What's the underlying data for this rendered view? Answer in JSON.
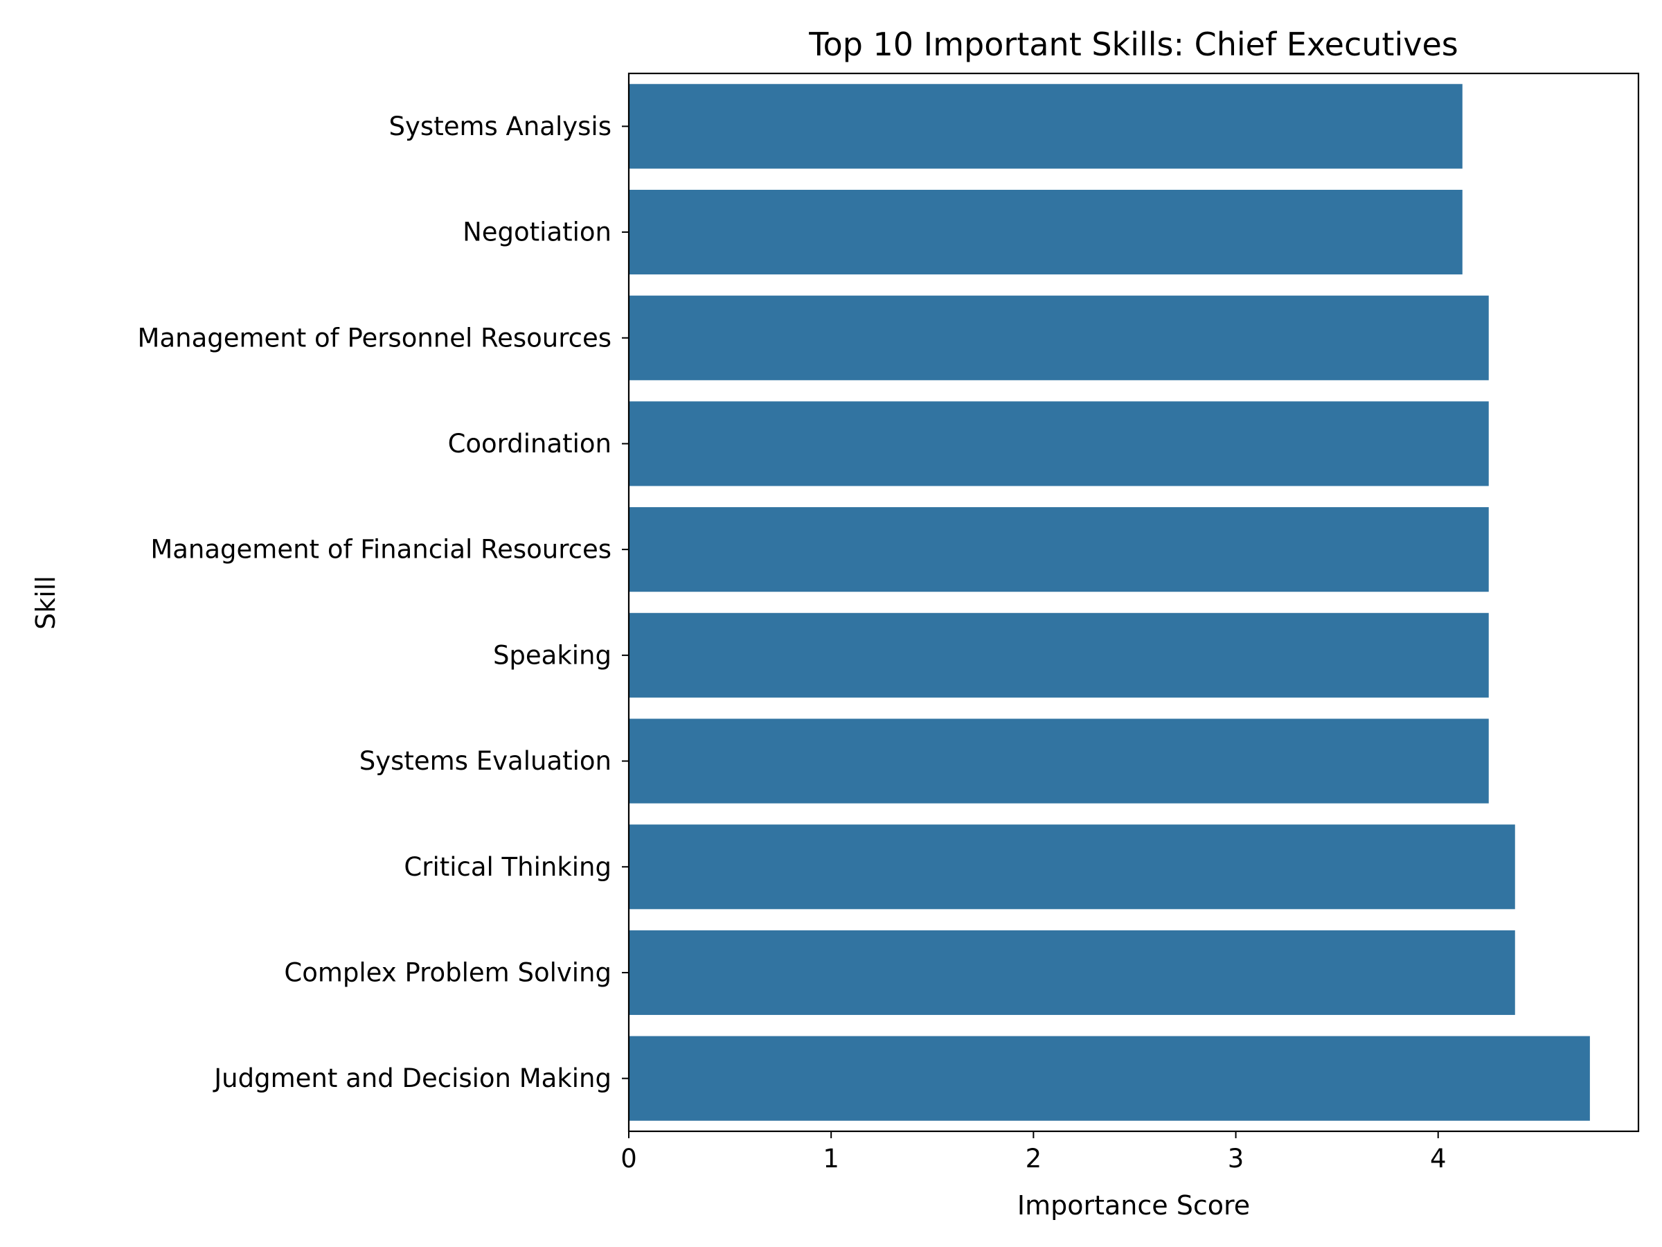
{
  "chart_data": {
    "type": "bar",
    "orientation": "horizontal",
    "title": "Top 10 Important Skills: Chief Executives",
    "xlabel": "Importance Score",
    "ylabel": "Skill",
    "categories": [
      "Systems Analysis",
      "Negotiation",
      "Management of Personnel Resources",
      "Coordination",
      "Management of Financial Resources",
      "Speaking",
      "Systems Evaluation",
      "Critical Thinking",
      "Complex Problem Solving",
      "Judgment and Decision Making"
    ],
    "values": [
      4.12,
      4.12,
      4.25,
      4.25,
      4.25,
      4.25,
      4.25,
      4.38,
      4.38,
      4.75
    ],
    "xlim": [
      0,
      4.99
    ],
    "xticks": [
      0,
      1,
      2,
      3,
      4
    ],
    "grid": false,
    "legend": "none",
    "bar_color": "#3274a1"
  }
}
